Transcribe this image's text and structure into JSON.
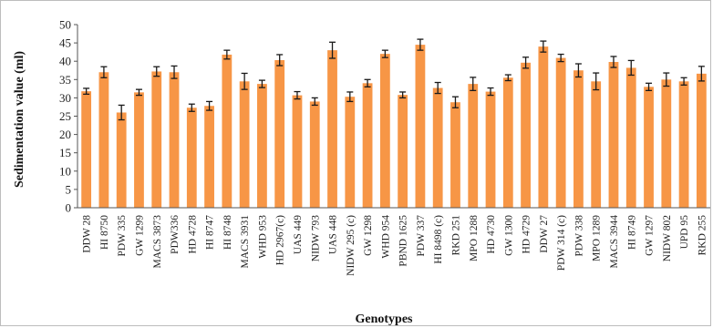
{
  "chart_data": {
    "type": "bar",
    "xlabel": "Genotypes",
    "ylabel": "Sedimentation value (ml)",
    "ylim": [
      0,
      50
    ],
    "yticks": [
      0,
      5,
      10,
      15,
      20,
      25,
      30,
      35,
      40,
      45,
      50
    ],
    "grid": false,
    "error_bars": true,
    "bar_color": "#f79646",
    "error_color": "#1a1a1a",
    "categories": [
      "DDW 28",
      "HI 8750",
      "PDW 335",
      "GW 1299",
      "MACS 3873",
      "PDW336",
      "HD 4728",
      "HI 8747",
      "HI 8748",
      "MACS 3931",
      "WHD 953",
      "HD 2967(c)",
      "UAS 449",
      "NIDW 793",
      "UAS 448",
      "NIDW 295 (c)",
      "GW 1298",
      "WHD 954",
      "PBND 1625",
      "PDW 337",
      "HI 8498 (c)",
      "RKD 251",
      "MPO 1288",
      "HD 4730",
      "GW 1300",
      "HD 4729",
      "DDW 27",
      "PDW 314 (c)",
      "PDW 338",
      "MPO 1289",
      "MACS 3944",
      "HI 8749",
      "GW 1297",
      "NIDW 802",
      "UPD 95",
      "RKD 255"
    ],
    "values": [
      31.8,
      37.0,
      26.0,
      31.5,
      37.2,
      37.0,
      27.3,
      27.8,
      41.8,
      34.5,
      33.8,
      40.3,
      30.7,
      29.0,
      43.0,
      30.3,
      34.0,
      42.0,
      30.8,
      44.5,
      32.7,
      28.8,
      33.8,
      31.7,
      35.5,
      39.6,
      44.0,
      40.9,
      37.5,
      34.5,
      39.8,
      38.2,
      33.0,
      35.0,
      34.5,
      36.6
    ],
    "errors": [
      0.8,
      1.5,
      2.0,
      0.8,
      1.3,
      1.7,
      1.0,
      1.2,
      1.2,
      2.2,
      1.0,
      1.5,
      1.0,
      1.0,
      2.2,
      1.3,
      1.0,
      1.0,
      0.8,
      1.5,
      1.5,
      1.5,
      1.8,
      1.0,
      0.8,
      1.5,
      1.5,
      1.0,
      1.8,
      2.3,
      1.5,
      2.0,
      1.0,
      1.8,
      1.0,
      2.0
    ]
  }
}
